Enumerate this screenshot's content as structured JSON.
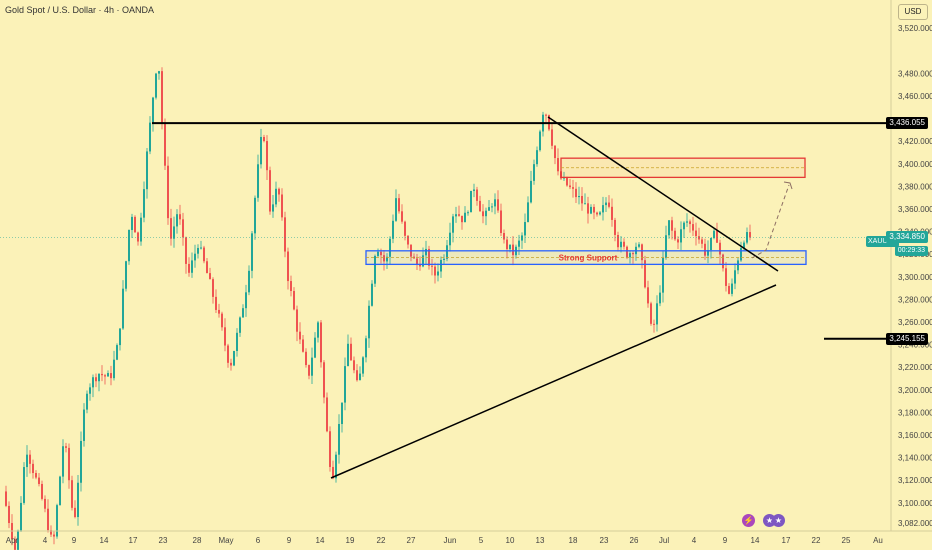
{
  "header": {
    "symbol_title": "Gold Spot / U.S. Dollar · 4h · OANDA",
    "currency": "USD",
    "ticker": "XAUUSD",
    "last_price": "3,334.850",
    "countdown": "00:29:33"
  },
  "colors": {
    "background": "#fbf2b8",
    "up_candle": "#22a699",
    "down_candle": "#ef5350",
    "trendline": "#000000",
    "support_box": "#2962ff",
    "resistance_box": "#e53935",
    "price_line": "#22a699"
  },
  "annotations": {
    "support_label": "Strong Support",
    "resistance_tag": "3,436.055",
    "support_tag": "3,245.155"
  },
  "events": [
    {
      "icon": "lightning-icon",
      "color": "#ab47bc"
    },
    {
      "icon": "us-flag-icon",
      "color": "#7e57c2"
    },
    {
      "icon": "us-flag-icon",
      "color": "#7e57c2"
    }
  ],
  "chart_data": {
    "type": "candlestick",
    "title": "Gold Spot / U.S. Dollar · 4h · OANDA",
    "ylabel": "USD",
    "ylim": [
      3075,
      3545
    ],
    "y_ticks": [
      "3,520.000",
      "3,480.000",
      "3,460.000",
      "3,420.000",
      "3,400.000",
      "3,380.000",
      "3,360.000",
      "3,340.000",
      "3,320.000",
      "3,300.000",
      "3,280.000",
      "3,260.000",
      "3,240.000",
      "3,220.000",
      "3,200.000",
      "3,180.000",
      "3,160.000",
      "3,140.000",
      "3,120.000",
      "3,100.000",
      "3,082.000"
    ],
    "x_ticks": [
      "Apr",
      "4",
      "9",
      "14",
      "17",
      "23",
      "28",
      "May",
      "6",
      "9",
      "14",
      "19",
      "22",
      "27",
      "Jun",
      "5",
      "10",
      "13",
      "18",
      "23",
      "26",
      "Jul",
      "4",
      "9",
      "14",
      "17",
      "22",
      "25",
      "Au"
    ],
    "key_points": [
      {
        "label": "early April low",
        "value": 3055
      },
      {
        "label": "April 22 high",
        "value": 3500
      },
      {
        "label": "May 6 high",
        "value": 3435
      },
      {
        "label": "May 15 low",
        "value": 3120
      },
      {
        "label": "June 16 high",
        "value": 3452
      },
      {
        "label": "June 30 low",
        "value": 3247
      },
      {
        "label": "July 9 low",
        "value": 3282
      },
      {
        "label": "last",
        "value": 3334.85
      }
    ],
    "horizontal_levels": [
      3436.055,
      3245.155
    ],
    "support_zone": [
      3311,
      3323
    ],
    "resistance_zone": [
      3388,
      3405
    ],
    "projected_target": 3389
  }
}
